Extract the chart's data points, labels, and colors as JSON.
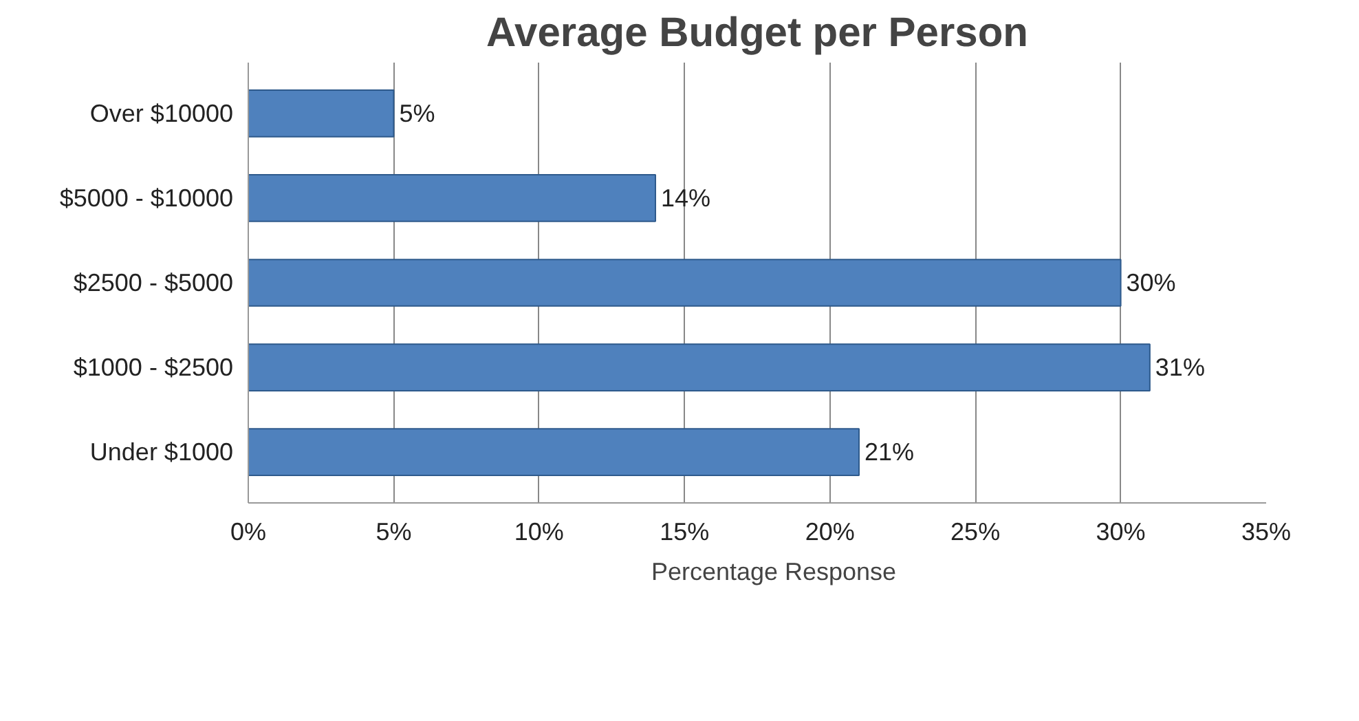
{
  "chart_data": {
    "type": "bar",
    "orientation": "horizontal",
    "title": "Average Budget per Person",
    "categories": [
      "Over $10000",
      "$5000 - $10000",
      "$2500 - $5000",
      "$1000 - $2500",
      "Under $1000"
    ],
    "series": [
      {
        "name": "Percentage Response",
        "color": "#4f81bd",
        "values": [
          5,
          14,
          30,
          31,
          21
        ],
        "value_labels": [
          "5%",
          "14%",
          "30%",
          "31%",
          "21%"
        ]
      }
    ],
    "xlim": [
      0,
      35
    ],
    "xticks": [
      {
        "value": 0,
        "label": "0%"
      },
      {
        "value": 5,
        "label": "5%"
      },
      {
        "value": 10,
        "label": "10%"
      },
      {
        "value": 15,
        "label": "15%"
      },
      {
        "value": 20,
        "label": "20%"
      },
      {
        "value": 25,
        "label": "25%"
      },
      {
        "value": 30,
        "label": "30%"
      },
      {
        "value": 35,
        "label": "35%"
      }
    ],
    "grid": "x",
    "legend": "bottom"
  }
}
